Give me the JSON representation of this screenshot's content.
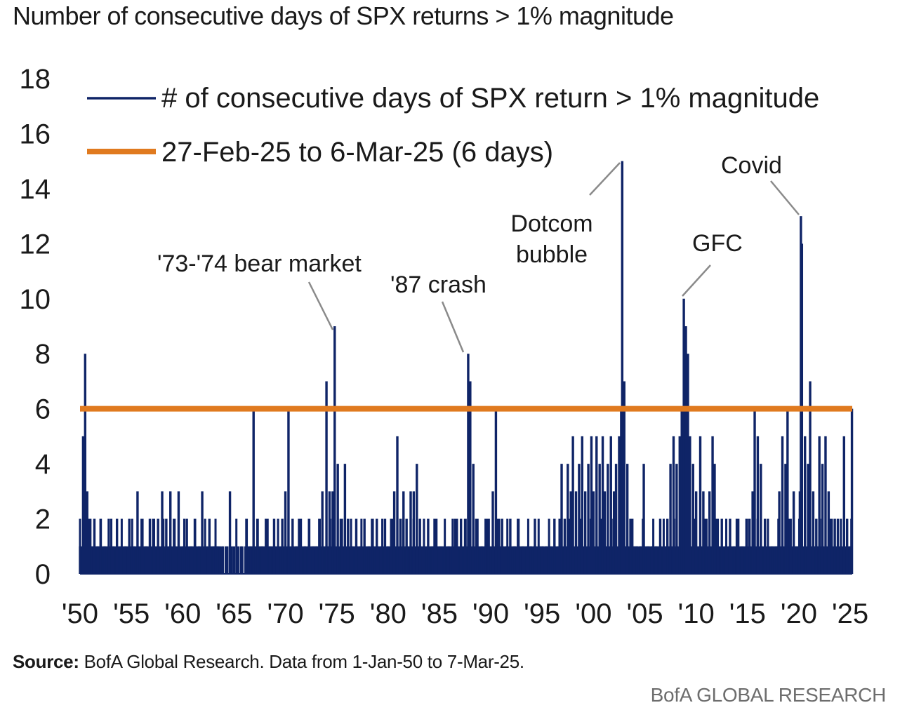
{
  "page": {
    "title": "Number of consecutive days of SPX returns > 1% magnitude",
    "source_label": "Source:",
    "source_text": " BofA Global Research. Data from 1-Jan-50 to 7-Mar-25.",
    "brand": "BofA GLOBAL RESEARCH"
  },
  "colors": {
    "series": "#0f2467",
    "threshold": "#e07a1f",
    "leader": "#8a8a8a",
    "text": "#1a1a1a"
  },
  "chart_data": {
    "type": "bar",
    "title": "Number of consecutive days of SPX returns > 1% magnitude",
    "xlabel": "",
    "ylabel": "",
    "xlim": [
      1950,
      2025.2
    ],
    "ylim": [
      0,
      18
    ],
    "yticks": [
      0,
      2,
      4,
      6,
      8,
      10,
      12,
      14,
      16,
      18
    ],
    "xticks": [
      {
        "x": 1950,
        "label": "'50"
      },
      {
        "x": 1955,
        "label": "'55"
      },
      {
        "x": 1960,
        "label": "'60"
      },
      {
        "x": 1965,
        "label": "'65"
      },
      {
        "x": 1970,
        "label": "'70"
      },
      {
        "x": 1975,
        "label": "'75"
      },
      {
        "x": 1980,
        "label": "'80"
      },
      {
        "x": 1985,
        "label": "'85"
      },
      {
        "x": 1990,
        "label": "'90"
      },
      {
        "x": 1995,
        "label": "'95"
      },
      {
        "x": 2000,
        "label": "'00"
      },
      {
        "x": 2005,
        "label": "'05"
      },
      {
        "x": 2010,
        "label": "'10"
      },
      {
        "x": 2015,
        "label": "'15"
      },
      {
        "x": 2020,
        "label": "'20"
      },
      {
        "x": 2025,
        "label": "'25"
      }
    ],
    "legend": [
      {
        "label": "# of consecutive days of SPX return > 1% magnitude",
        "style": "thin-line",
        "color": "#0f2467"
      },
      {
        "label": "27-Feb-25 to 6-Mar-25 (6 days)",
        "style": "thick-line",
        "color": "#e07a1f"
      }
    ],
    "threshold": {
      "name": "27-Feb-25 to 6-Mar-25 (6 days)",
      "value": 6
    },
    "series": [
      {
        "name": "# of consecutive days of SPX return > 1% magnitude",
        "points": [
          [
            1950.0,
            1
          ],
          [
            1950.3,
            5
          ],
          [
            1950.5,
            8
          ],
          [
            1950.7,
            3
          ],
          [
            1950.9,
            2
          ],
          [
            1951.1,
            1
          ],
          [
            1951.4,
            2
          ],
          [
            1951.7,
            1
          ],
          [
            1952.0,
            2
          ],
          [
            1952.4,
            1
          ],
          [
            1952.8,
            2
          ],
          [
            1953.2,
            1
          ],
          [
            1953.6,
            2
          ],
          [
            1954.0,
            1
          ],
          [
            1954.4,
            1
          ],
          [
            1954.8,
            2
          ],
          [
            1955.2,
            1
          ],
          [
            1955.6,
            3
          ],
          [
            1956.0,
            2
          ],
          [
            1956.4,
            1
          ],
          [
            1956.8,
            2
          ],
          [
            1957.2,
            2
          ],
          [
            1957.6,
            2
          ],
          [
            1958.0,
            3
          ],
          [
            1958.4,
            2
          ],
          [
            1958.8,
            3
          ],
          [
            1959.2,
            2
          ],
          [
            1959.6,
            3
          ],
          [
            1960.0,
            1
          ],
          [
            1960.4,
            2
          ],
          [
            1960.8,
            1
          ],
          [
            1961.2,
            2
          ],
          [
            1961.6,
            1
          ],
          [
            1961.9,
            3
          ],
          [
            1962.2,
            1
          ],
          [
            1962.6,
            2
          ],
          [
            1963.0,
            1
          ],
          [
            1963.4,
            1
          ],
          [
            1963.8,
            1
          ],
          [
            1964.2,
            1
          ],
          [
            1964.6,
            3
          ],
          [
            1965.0,
            1
          ],
          [
            1965.4,
            1
          ],
          [
            1965.8,
            1
          ],
          [
            1966.2,
            2
          ],
          [
            1966.6,
            1
          ],
          [
            1966.9,
            6
          ],
          [
            1967.3,
            2
          ],
          [
            1967.7,
            1
          ],
          [
            1968.1,
            2
          ],
          [
            1968.5,
            1
          ],
          [
            1968.9,
            2
          ],
          [
            1969.3,
            1
          ],
          [
            1969.7,
            2
          ],
          [
            1970.0,
            3
          ],
          [
            1970.3,
            6
          ],
          [
            1970.7,
            2
          ],
          [
            1971.1,
            1
          ],
          [
            1971.5,
            2
          ],
          [
            1971.9,
            1
          ],
          [
            1972.3,
            2
          ],
          [
            1972.7,
            1
          ],
          [
            1973.0,
            1
          ],
          [
            1973.3,
            2
          ],
          [
            1973.6,
            3
          ],
          [
            1974.0,
            7
          ],
          [
            1974.3,
            3
          ],
          [
            1974.6,
            3
          ],
          [
            1974.8,
            9
          ],
          [
            1975.1,
            4
          ],
          [
            1975.5,
            2
          ],
          [
            1975.8,
            4
          ],
          [
            1976.1,
            2
          ],
          [
            1976.5,
            1
          ],
          [
            1976.9,
            2
          ],
          [
            1977.3,
            1
          ],
          [
            1977.7,
            2
          ],
          [
            1978.1,
            1
          ],
          [
            1978.5,
            2
          ],
          [
            1978.9,
            2
          ],
          [
            1979.3,
            1
          ],
          [
            1979.7,
            2
          ],
          [
            1980.0,
            1
          ],
          [
            1980.3,
            2
          ],
          [
            1980.6,
            3
          ],
          [
            1980.9,
            5
          ],
          [
            1981.2,
            2
          ],
          [
            1981.5,
            3
          ],
          [
            1981.8,
            2
          ],
          [
            1982.2,
            3
          ],
          [
            1982.5,
            3
          ],
          [
            1982.8,
            4
          ],
          [
            1983.1,
            2
          ],
          [
            1983.5,
            1
          ],
          [
            1983.9,
            2
          ],
          [
            1984.3,
            1
          ],
          [
            1984.7,
            2
          ],
          [
            1985.1,
            1
          ],
          [
            1985.5,
            1
          ],
          [
            1985.9,
            1
          ],
          [
            1986.3,
            2
          ],
          [
            1986.7,
            2
          ],
          [
            1987.1,
            2
          ],
          [
            1987.5,
            2
          ],
          [
            1987.8,
            8
          ],
          [
            1988.0,
            7
          ],
          [
            1988.3,
            4
          ],
          [
            1988.7,
            2
          ],
          [
            1989.1,
            1
          ],
          [
            1989.5,
            2
          ],
          [
            1989.8,
            2
          ],
          [
            1990.2,
            3
          ],
          [
            1990.5,
            6
          ],
          [
            1990.8,
            2
          ],
          [
            1991.1,
            2
          ],
          [
            1991.5,
            1
          ],
          [
            1991.9,
            2
          ],
          [
            1992.3,
            1
          ],
          [
            1992.7,
            2
          ],
          [
            1993.1,
            1
          ],
          [
            1993.5,
            1
          ],
          [
            1993.9,
            1
          ],
          [
            1994.3,
            2
          ],
          [
            1994.7,
            1
          ],
          [
            1995.0,
            1
          ],
          [
            1995.4,
            1
          ],
          [
            1995.8,
            1
          ],
          [
            1996.2,
            2
          ],
          [
            1996.6,
            1
          ],
          [
            1996.9,
            4
          ],
          [
            1997.2,
            2
          ],
          [
            1997.5,
            4
          ],
          [
            1997.8,
            3
          ],
          [
            1998.0,
            5
          ],
          [
            1998.3,
            3
          ],
          [
            1998.6,
            4
          ],
          [
            1998.9,
            5
          ],
          [
            1999.2,
            3
          ],
          [
            1999.5,
            4
          ],
          [
            1999.8,
            5
          ],
          [
            2000.0,
            3
          ],
          [
            2000.3,
            5
          ],
          [
            2000.6,
            4
          ],
          [
            2000.9,
            5
          ],
          [
            2001.1,
            3
          ],
          [
            2001.4,
            4
          ],
          [
            2001.7,
            5
          ],
          [
            2002.0,
            3
          ],
          [
            2002.2,
            4
          ],
          [
            2002.5,
            5
          ],
          [
            2002.7,
            6
          ],
          [
            2002.8,
            15
          ],
          [
            2003.0,
            7
          ],
          [
            2003.3,
            4
          ],
          [
            2003.6,
            2
          ],
          [
            2003.9,
            1
          ],
          [
            2004.2,
            1
          ],
          [
            2004.6,
            1
          ],
          [
            2004.9,
            4
          ],
          [
            2005.3,
            1
          ],
          [
            2005.7,
            1
          ],
          [
            2006.1,
            1
          ],
          [
            2006.5,
            2
          ],
          [
            2006.9,
            1
          ],
          [
            2007.2,
            2
          ],
          [
            2007.5,
            4
          ],
          [
            2007.8,
            5
          ],
          [
            2008.1,
            4
          ],
          [
            2008.4,
            5
          ],
          [
            2008.6,
            6
          ],
          [
            2008.8,
            10
          ],
          [
            2009.0,
            9
          ],
          [
            2009.2,
            8
          ],
          [
            2009.4,
            5
          ],
          [
            2009.7,
            4
          ],
          [
            2010.0,
            3
          ],
          [
            2010.4,
            5
          ],
          [
            2010.7,
            3
          ],
          [
            2011.0,
            2
          ],
          [
            2011.3,
            3
          ],
          [
            2011.6,
            5
          ],
          [
            2011.8,
            4
          ],
          [
            2012.1,
            2
          ],
          [
            2012.5,
            2
          ],
          [
            2012.9,
            1
          ],
          [
            2013.3,
            2
          ],
          [
            2013.7,
            1
          ],
          [
            2014.1,
            2
          ],
          [
            2014.5,
            1
          ],
          [
            2014.9,
            2
          ],
          [
            2015.2,
            2
          ],
          [
            2015.5,
            3
          ],
          [
            2015.7,
            6
          ],
          [
            2016.0,
            5
          ],
          [
            2016.3,
            4
          ],
          [
            2016.7,
            2
          ],
          [
            2017.0,
            1
          ],
          [
            2017.4,
            1
          ],
          [
            2017.8,
            1
          ],
          [
            2018.1,
            3
          ],
          [
            2018.4,
            5
          ],
          [
            2018.7,
            4
          ],
          [
            2018.9,
            6
          ],
          [
            2019.2,
            2
          ],
          [
            2019.5,
            3
          ],
          [
            2019.8,
            1
          ],
          [
            2020.1,
            3
          ],
          [
            2020.2,
            13
          ],
          [
            2020.3,
            12
          ],
          [
            2020.6,
            5
          ],
          [
            2020.9,
            4
          ],
          [
            2021.1,
            7
          ],
          [
            2021.4,
            3
          ],
          [
            2021.7,
            2
          ],
          [
            2022.0,
            5
          ],
          [
            2022.3,
            4
          ],
          [
            2022.6,
            5
          ],
          [
            2022.9,
            3
          ],
          [
            2023.2,
            2
          ],
          [
            2023.5,
            2
          ],
          [
            2023.8,
            2
          ],
          [
            2024.1,
            1
          ],
          [
            2024.4,
            5
          ],
          [
            2024.7,
            2
          ],
          [
            2025.0,
            1
          ],
          [
            2025.17,
            6
          ]
        ]
      }
    ],
    "annotations": [
      {
        "id": "bear-73-74",
        "text": "'73-'74 bear market",
        "x": 1974.8,
        "y": 9
      },
      {
        "id": "crash-87",
        "text": "'87 crash",
        "x": 1987.8,
        "y": 8
      },
      {
        "id": "dotcom",
        "text": "Dotcom bubble",
        "lines": [
          "Dotcom",
          "bubble"
        ],
        "x": 2002.8,
        "y": 15
      },
      {
        "id": "gfc",
        "text": "GFC",
        "x": 2008.8,
        "y": 10
      },
      {
        "id": "covid",
        "text": "Covid",
        "x": 2020.2,
        "y": 13
      }
    ]
  }
}
